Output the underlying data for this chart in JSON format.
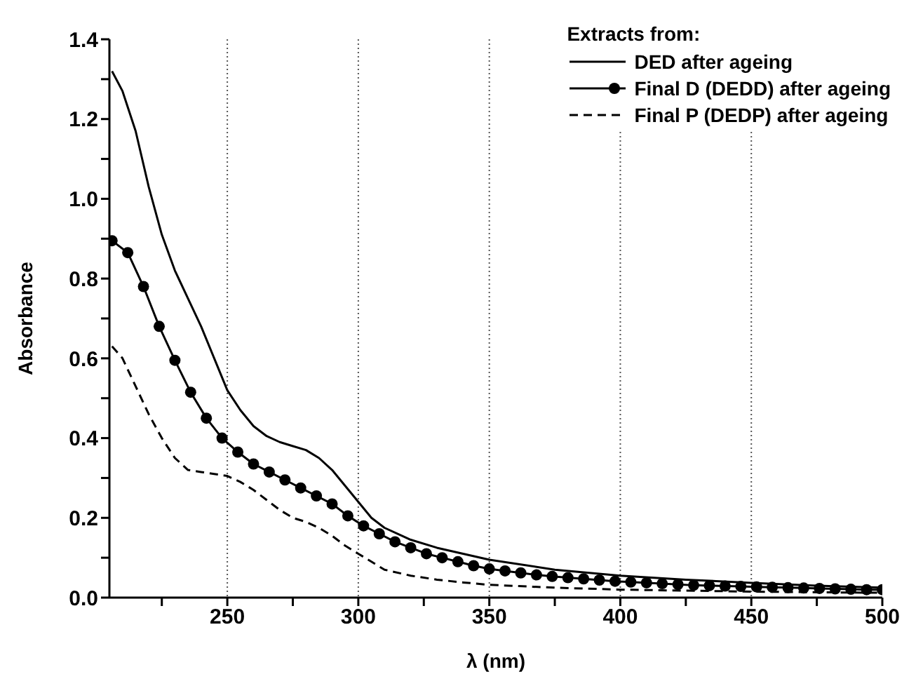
{
  "chart_data": {
    "type": "line",
    "xlabel": "λ (nm)",
    "ylabel": "Absorbance",
    "legend_title": "Extracts from:",
    "xlim": [
      205,
      500
    ],
    "xticks": [
      {
        "value": 225,
        "label": null
      },
      250,
      {
        "value": 275,
        "label": null
      },
      300,
      {
        "value": 325,
        "label": null
      },
      350,
      {
        "value": 375,
        "label": null
      },
      400,
      {
        "value": 425,
        "label": null
      },
      450,
      {
        "value": 475,
        "label": null
      },
      500
    ],
    "ylim": [
      0,
      1.4
    ],
    "yticks": [
      {
        "value": 0,
        "label": "0.0"
      },
      {
        "value": 0.1,
        "label": null
      },
      0.2,
      {
        "value": 0.3,
        "label": null
      },
      0.4,
      {
        "value": 0.5,
        "label": null
      },
      0.6,
      {
        "value": 0.7,
        "label": null
      },
      0.8,
      {
        "value": 0.9,
        "label": null
      },
      {
        "value": 1,
        "label": "1.0"
      },
      {
        "value": 1.1,
        "label": null
      },
      1.2,
      {
        "value": 1.3,
        "label": null
      },
      1.4
    ],
    "grid": "x",
    "legend": "top right",
    "series": [
      {
        "name": "DED after ageing",
        "color": "#000000",
        "line_style": "solid",
        "marker": "none",
        "x": [
          206,
          210,
          215,
          220,
          225,
          230,
          235,
          240,
          245,
          250,
          255,
          260,
          265,
          270,
          275,
          280,
          285,
          290,
          295,
          300,
          305,
          310,
          320,
          330,
          340,
          350,
          375,
          400,
          425,
          450,
          475,
          500
        ],
        "values": [
          1.32,
          1.27,
          1.17,
          1.03,
          0.91,
          0.82,
          0.75,
          0.68,
          0.6,
          0.52,
          0.47,
          0.43,
          0.405,
          0.39,
          0.38,
          0.37,
          0.35,
          0.32,
          0.28,
          0.24,
          0.2,
          0.175,
          0.145,
          0.125,
          0.11,
          0.095,
          0.07,
          0.055,
          0.045,
          0.037,
          0.03,
          0.025
        ]
      },
      {
        "name": "Final D (DEDD) after ageing",
        "color": "#000000",
        "line_style": "solid",
        "marker": "circle",
        "x": [
          206,
          212,
          218,
          224,
          230,
          236,
          242,
          248,
          254,
          260,
          266,
          272,
          278,
          284,
          290,
          296,
          302,
          308,
          314,
          320,
          326,
          332,
          338,
          344,
          350,
          356,
          362,
          368,
          374,
          380,
          386,
          392,
          398,
          404,
          410,
          416,
          422,
          428,
          434,
          440,
          446,
          452,
          458,
          464,
          470,
          476,
          482,
          488,
          494,
          500
        ],
        "values": [
          0.895,
          0.865,
          0.78,
          0.68,
          0.595,
          0.515,
          0.45,
          0.4,
          0.365,
          0.335,
          0.315,
          0.295,
          0.275,
          0.255,
          0.235,
          0.205,
          0.18,
          0.16,
          0.14,
          0.125,
          0.11,
          0.1,
          0.09,
          0.08,
          0.072,
          0.067,
          0.062,
          0.057,
          0.053,
          0.05,
          0.047,
          0.044,
          0.041,
          0.039,
          0.037,
          0.035,
          0.033,
          0.031,
          0.03,
          0.029,
          0.028,
          0.027,
          0.026,
          0.025,
          0.024,
          0.023,
          0.022,
          0.021,
          0.02,
          0.02
        ]
      },
      {
        "name": "Final P (DEDP) after ageing",
        "color": "#000000",
        "line_style": "dashed",
        "marker": "none",
        "x": [
          206,
          210,
          215,
          220,
          225,
          230,
          235,
          240,
          245,
          250,
          255,
          260,
          265,
          270,
          275,
          280,
          285,
          290,
          295,
          300,
          305,
          310,
          320,
          330,
          340,
          350,
          375,
          400,
          450,
          500
        ],
        "values": [
          0.63,
          0.6,
          0.53,
          0.46,
          0.4,
          0.35,
          0.32,
          0.315,
          0.31,
          0.305,
          0.29,
          0.27,
          0.245,
          0.22,
          0.2,
          0.19,
          0.175,
          0.155,
          0.13,
          0.11,
          0.09,
          0.07,
          0.055,
          0.045,
          0.038,
          0.032,
          0.025,
          0.02,
          0.015,
          0.012
        ]
      }
    ]
  }
}
